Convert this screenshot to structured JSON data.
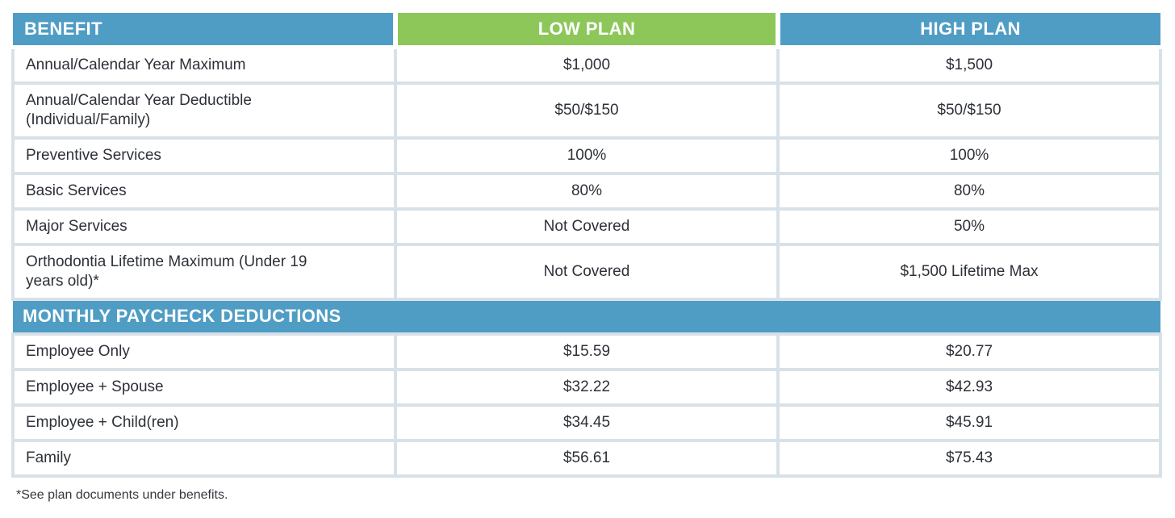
{
  "colors": {
    "header_blue": "#4F9DC5",
    "header_green": "#8DC75A",
    "border": "#D8E1E8",
    "text": "#2D3138"
  },
  "table": {
    "columns": [
      {
        "label": "BENEFIT"
      },
      {
        "label": "LOW PLAN"
      },
      {
        "label": "HIGH PLAN"
      }
    ],
    "benefit_rows": [
      {
        "benefit": "Annual/Calendar Year Maximum",
        "low": "$1,000",
        "high": "$1,500"
      },
      {
        "benefit": "Annual/Calendar Year Deductible",
        "benefit_line2": "(Individual/Family)",
        "low": "$50/$150",
        "high": "$50/$150"
      },
      {
        "benefit": "Preventive Services",
        "low": "100%",
        "high": "100%"
      },
      {
        "benefit": "Basic Services",
        "low": "80%",
        "high": "80%"
      },
      {
        "benefit": "Major Services",
        "low": "Not Covered",
        "high": "50%"
      },
      {
        "benefit": "Orthodontia Lifetime Maximum (Under 19",
        "benefit_line2": "years old)*",
        "low": "Not Covered",
        "high": "$1,500 Lifetime Max"
      }
    ],
    "section_header": "MONTHLY PAYCHECK DEDUCTIONS",
    "deduction_rows": [
      {
        "benefit": "Employee Only",
        "low": "$15.59",
        "high": "$20.77"
      },
      {
        "benefit": "Employee + Spouse",
        "low": "$32.22",
        "high": "$42.93"
      },
      {
        "benefit": "Employee + Child(ren)",
        "low": "$34.45",
        "high": "$45.91"
      },
      {
        "benefit": "Family",
        "low": "$56.61",
        "high": "$75.43"
      }
    ],
    "footnote": "*See plan documents under benefits."
  }
}
